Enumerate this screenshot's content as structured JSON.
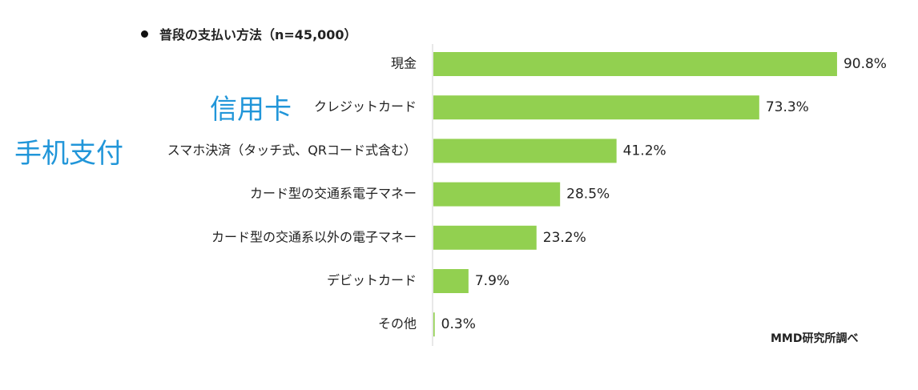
{
  "title": "普段の支払い方法（n=45,000）",
  "annotations": {
    "credit_card": "信用卡",
    "mobile_payment": "手机支付"
  },
  "source": "MMD研究所調べ",
  "colors": {
    "bar": "#92d050",
    "annotation": "#2196d9",
    "axis": "#d0d0d0",
    "text": "#222222"
  },
  "chart_data": {
    "type": "bar",
    "orientation": "horizontal",
    "title": "普段の支払い方法（n=45,000）",
    "categories": [
      "現金",
      "クレジットカード",
      "スマホ決済（タッチ式、QRコード式含む）",
      "カード型の交通系電子マネー",
      "カード型の交通系以外の電子マネー",
      "デビットカード",
      "その他"
    ],
    "values": [
      90.8,
      73.3,
      41.2,
      28.5,
      23.2,
      7.9,
      0.3
    ],
    "value_labels": [
      "90.8%",
      "73.3%",
      "41.2%",
      "28.5%",
      "23.2%",
      "7.9%",
      "0.3%"
    ],
    "unit": "%",
    "xlim": [
      0,
      100
    ],
    "grid": false,
    "legend": "none"
  }
}
